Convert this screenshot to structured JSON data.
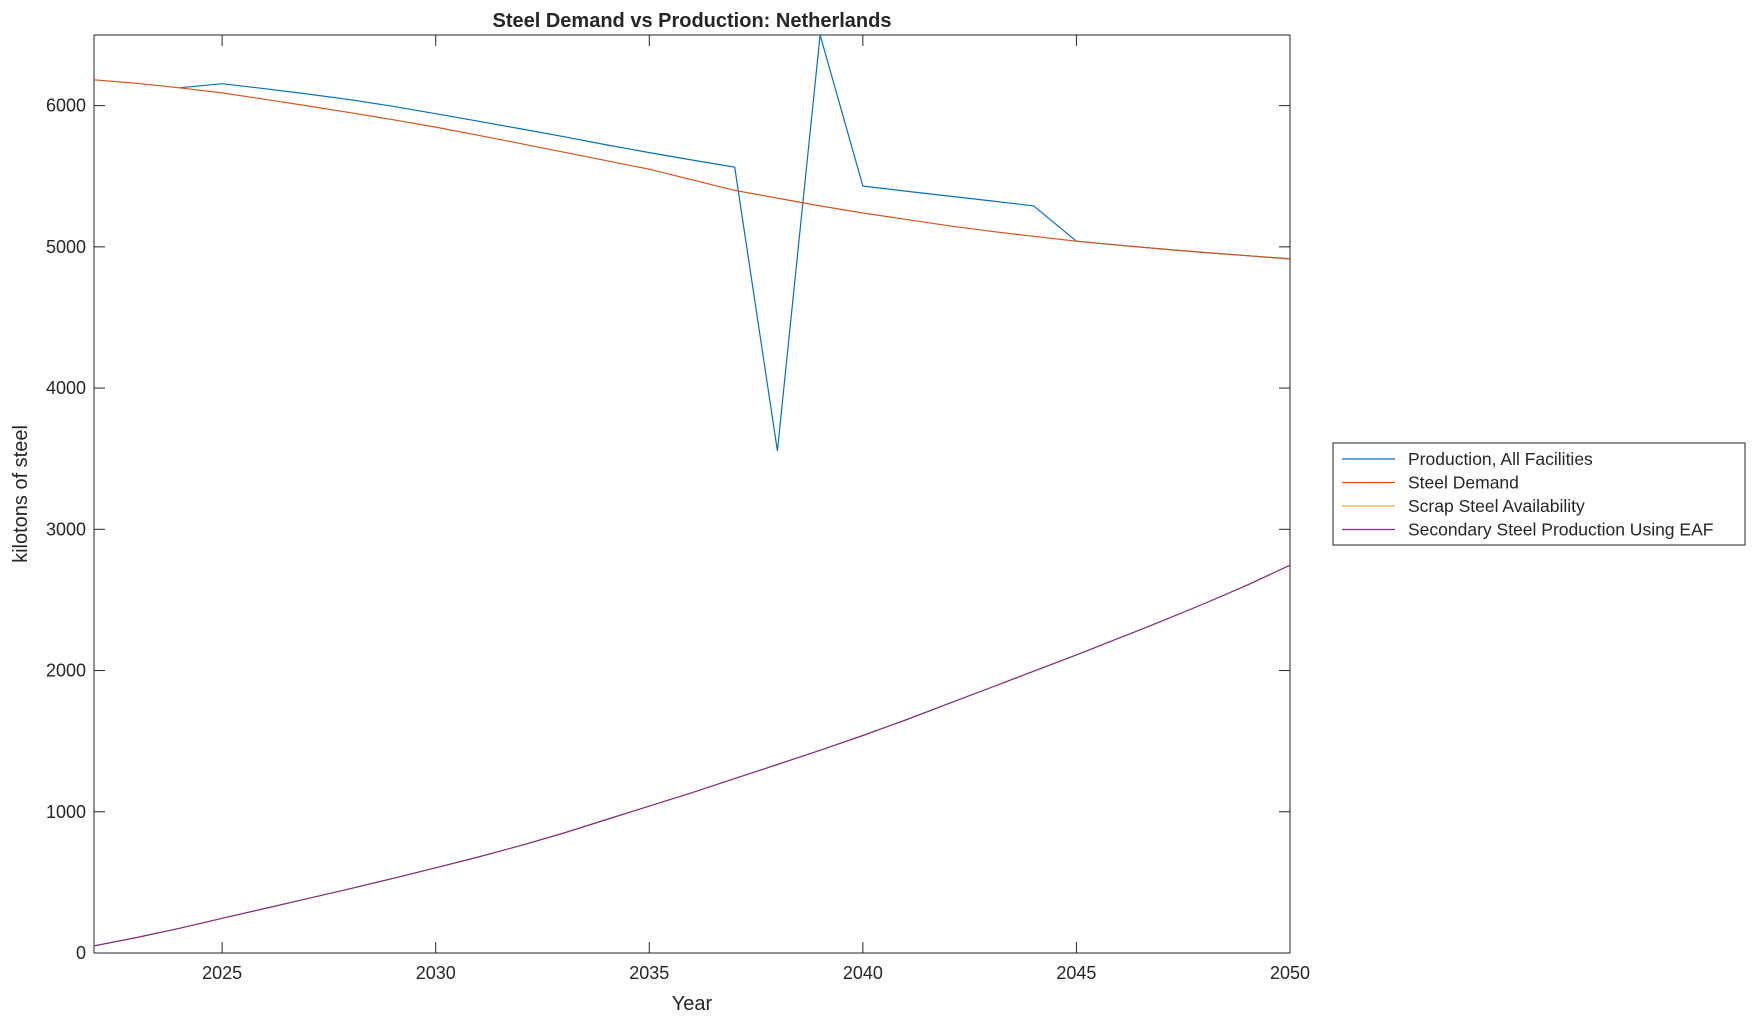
{
  "chart_data": {
    "type": "line",
    "title": "Steel Demand vs Production: Netherlands",
    "xlabel": "Year",
    "ylabel": "kilotons of steel",
    "xlim": [
      2022,
      2050
    ],
    "ylim": [
      0,
      6500
    ],
    "xticks": [
      2025,
      2030,
      2035,
      2040,
      2045,
      2050
    ],
    "yticks": [
      0,
      1000,
      2000,
      3000,
      4000,
      5000,
      6000
    ],
    "grid": false,
    "legend_position": "outside-right",
    "x": [
      2022,
      2023,
      2024,
      2025,
      2026,
      2027,
      2028,
      2029,
      2030,
      2031,
      2032,
      2033,
      2034,
      2035,
      2036,
      2037,
      2038,
      2039,
      2040,
      2041,
      2042,
      2043,
      2044,
      2045,
      2046,
      2047,
      2048,
      2049,
      2050
    ],
    "series": [
      {
        "name": "Production, All Facilities",
        "color": "#0072BD",
        "values": [
          null,
          null,
          6126,
          6155,
          6120,
          6082,
          6042,
          5995,
          5943,
          5890,
          5835,
          5780,
          5722,
          5667,
          5615,
          5565,
          3556,
          6500,
          5430,
          5395,
          5360,
          5325,
          5290,
          5040,
          5012,
          4985,
          4960,
          4937,
          4915
        ]
      },
      {
        "name": "Steel Demand",
        "color": "#D95319",
        "values": [
          6183,
          6158,
          6126,
          6090,
          6045,
          5998,
          5950,
          5900,
          5848,
          5790,
          5730,
          5670,
          5610,
          5550,
          5475,
          5400,
          5345,
          5290,
          5240,
          5195,
          5150,
          5110,
          5075,
          5040,
          5012,
          4985,
          4960,
          4937,
          4915
        ]
      },
      {
        "name": "Scrap Steel Availability",
        "color": "#EDB120",
        "values": [
          50,
          110,
          175,
          246,
          315,
          385,
          455,
          528,
          603,
          680,
          762,
          850,
          945,
          1040,
          1135,
          1235,
          1335,
          1435,
          1540,
          1650,
          1765,
          1880,
          1995,
          2111,
          2230,
          2350,
          2475,
          2605,
          2746
        ]
      },
      {
        "name": "Secondary Steel Production Using EAF",
        "color": "#7E2F8E",
        "values": [
          50,
          110,
          175,
          246,
          315,
          385,
          455,
          528,
          603,
          680,
          762,
          850,
          945,
          1040,
          1135,
          1235,
          1335,
          1435,
          1540,
          1650,
          1765,
          1880,
          1995,
          2111,
          2230,
          2350,
          2475,
          2605,
          2746
        ]
      }
    ]
  }
}
